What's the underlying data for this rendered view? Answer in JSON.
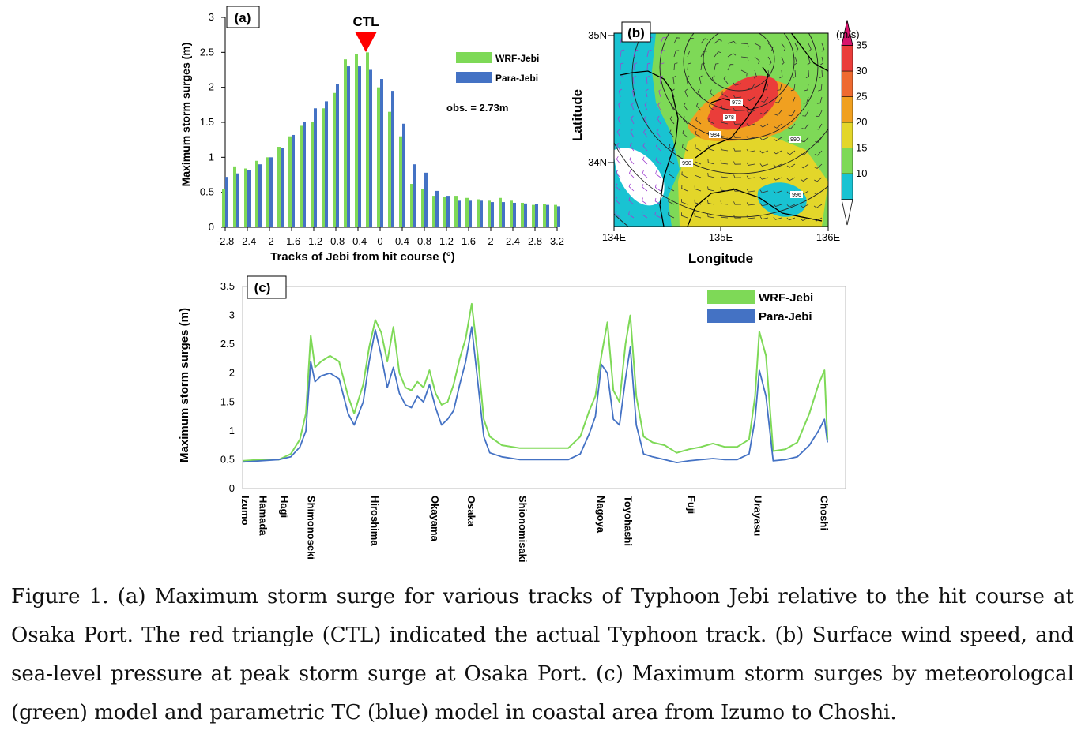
{
  "colors": {
    "wrf": "#7ED957",
    "para": "#4472C4",
    "ctl": "#FF0000"
  },
  "panel_a": {
    "label": "(a)",
    "ctl_label": "CTL",
    "obs_text": "obs. = 2.73m"
  },
  "panel_b": {
    "label": "(b)",
    "xlabel": "Longitude",
    "ylabel": "Latitude",
    "xticks": [
      "134E",
      "135E",
      "136E"
    ],
    "yticks": [
      "35N",
      "34N"
    ],
    "colorbar_unit": "(m/s)",
    "colorbar_ticks": [
      "35",
      "30",
      "25",
      "20",
      "15",
      "10"
    ],
    "colorbar_colors": [
      "#ffffff",
      "#19c3d2",
      "#7ed957",
      "#e3d62a",
      "#f0a020",
      "#ee6a30",
      "#ea3d3a",
      "#d8146c"
    ],
    "isobar_labels": [
      "972",
      "978",
      "984",
      "990",
      "990",
      "996"
    ]
  },
  "panel_c": {
    "label": "(c)"
  },
  "chart_data": [
    {
      "id": "a",
      "type": "bar",
      "title": "",
      "xlabel": "Tracks of Jebi from hit course (°)",
      "ylabel": "Maximum storm surges (m)",
      "ylim": [
        0,
        3
      ],
      "yticks": [
        "0",
        "0.5",
        "1",
        "1.5",
        "2",
        "2.5",
        "3"
      ],
      "xticks": [
        "-2.8",
        "-2.4",
        "-2",
        "-1.6",
        "-1.2",
        "-0.8",
        "-0.4",
        "0",
        "0.4",
        "0.8",
        "1.2",
        "1.6",
        "2",
        "2.4",
        "2.8",
        "3.2"
      ],
      "x": [
        -2.8,
        -2.6,
        -2.4,
        -2.2,
        -2.0,
        -1.8,
        -1.6,
        -1.4,
        -1.2,
        -1.0,
        -0.8,
        -0.6,
        -0.4,
        -0.2,
        0.0,
        0.2,
        0.4,
        0.6,
        0.8,
        1.0,
        1.2,
        1.4,
        1.6,
        1.8,
        2.0,
        2.2,
        2.4,
        2.6,
        2.8,
        3.0,
        3.2
      ],
      "series": [
        {
          "name": "WRF-Jebi",
          "values": [
            0.55,
            0.87,
            0.84,
            0.95,
            1.0,
            1.15,
            1.3,
            1.45,
            1.5,
            1.7,
            1.92,
            2.4,
            2.48,
            2.5,
            2.0,
            1.65,
            1.3,
            0.62,
            0.55,
            0.45,
            0.44,
            0.45,
            0.42,
            0.4,
            0.38,
            0.42,
            0.38,
            0.35,
            0.32,
            0.33,
            0.32
          ]
        },
        {
          "name": "Para-Jebi",
          "values": [
            0.72,
            0.77,
            0.82,
            0.9,
            1.0,
            1.13,
            1.32,
            1.5,
            1.7,
            1.8,
            2.05,
            2.3,
            2.3,
            2.25,
            2.12,
            1.95,
            1.48,
            0.9,
            0.78,
            0.52,
            0.45,
            0.38,
            0.38,
            0.38,
            0.36,
            0.36,
            0.35,
            0.34,
            0.33,
            0.32,
            0.3
          ]
        }
      ],
      "legend": "top-right",
      "annotations": [
        "CTL",
        "obs. = 2.73m"
      ]
    },
    {
      "id": "c",
      "type": "line",
      "title": "",
      "xlabel": "",
      "ylabel": "Maximum storm surges (m)",
      "ylim": [
        0,
        3.5
      ],
      "yticks": [
        "0",
        "0.5",
        "1",
        "1.5",
        "2",
        "2.5",
        "3",
        "3.5"
      ],
      "xlim": [
        0,
        100
      ],
      "location_labels": [
        "Izumo",
        "Hamada",
        "Hagi",
        "Shimonoseki",
        "Hiroshima",
        "Okayama",
        "Osaka",
        "Shionomisaki",
        "Nagoya",
        "Toyohashi",
        "Fuji",
        "Urayasu",
        "Choshi"
      ],
      "location_x": [
        0.5,
        3.5,
        7.0,
        11.5,
        22.0,
        32.0,
        38.0,
        46.5,
        59.5,
        64.0,
        74.5,
        85.5,
        96.5
      ],
      "series": [
        {
          "name": "WRF-Jebi",
          "x": [
            0,
            3,
            6,
            8,
            9.5,
            10.5,
            11.3,
            12,
            13,
            14.5,
            16,
            17.5,
            18.5,
            20,
            21,
            22,
            23,
            24,
            25,
            26,
            27,
            28,
            29,
            30,
            31,
            32,
            33,
            34,
            35,
            36,
            37,
            38,
            39,
            40,
            41,
            43,
            46,
            50,
            54,
            56,
            57.5,
            58.5,
            59.5,
            60.5,
            61.5,
            62.5,
            63.5,
            64.3,
            65.3,
            66.5,
            68,
            70,
            72,
            74,
            76,
            78,
            80,
            82,
            84,
            85,
            85.7,
            86.8,
            88,
            90,
            92,
            94,
            95.5,
            96.5,
            97
          ],
          "values": [
            0.48,
            0.5,
            0.5,
            0.6,
            0.85,
            1.3,
            2.65,
            2.1,
            2.2,
            2.3,
            2.2,
            1.6,
            1.3,
            1.8,
            2.45,
            2.92,
            2.7,
            2.2,
            2.8,
            2.0,
            1.75,
            1.7,
            1.85,
            1.75,
            2.05,
            1.65,
            1.45,
            1.5,
            1.8,
            2.25,
            2.6,
            3.2,
            2.3,
            1.2,
            0.9,
            0.75,
            0.7,
            0.7,
            0.7,
            0.9,
            1.35,
            1.6,
            2.3,
            2.88,
            1.7,
            1.5,
            2.5,
            3.0,
            1.6,
            0.9,
            0.8,
            0.75,
            0.62,
            0.68,
            0.72,
            0.78,
            0.72,
            0.72,
            0.85,
            1.6,
            2.72,
            2.3,
            0.65,
            0.68,
            0.8,
            1.3,
            1.8,
            2.05,
            0.85
          ]
        },
        {
          "name": "Para-Jebi",
          "x": [
            0,
            3,
            6,
            8,
            9.5,
            10.5,
            11.3,
            12,
            13,
            14.5,
            16,
            17.5,
            18.5,
            20,
            21,
            22,
            23,
            24,
            25,
            26,
            27,
            28,
            29,
            30,
            31,
            32,
            33,
            34,
            35,
            36,
            37,
            38,
            39,
            40,
            41,
            43,
            46,
            50,
            54,
            56,
            57.5,
            58.5,
            59.5,
            60.5,
            61.5,
            62.5,
            63.5,
            64.3,
            65.3,
            66.5,
            68,
            70,
            72,
            74,
            76,
            78,
            80,
            82,
            84,
            85,
            85.7,
            86.8,
            88,
            90,
            92,
            94,
            95.5,
            96.5,
            97
          ],
          "values": [
            0.46,
            0.48,
            0.5,
            0.55,
            0.72,
            1.0,
            2.2,
            1.85,
            1.95,
            2.0,
            1.9,
            1.3,
            1.1,
            1.5,
            2.2,
            2.75,
            2.3,
            1.75,
            2.1,
            1.65,
            1.45,
            1.4,
            1.6,
            1.5,
            1.8,
            1.4,
            1.1,
            1.2,
            1.35,
            1.8,
            2.2,
            2.8,
            1.85,
            0.9,
            0.62,
            0.55,
            0.5,
            0.5,
            0.5,
            0.6,
            0.95,
            1.25,
            2.15,
            2.0,
            1.2,
            1.1,
            1.9,
            2.45,
            1.1,
            0.6,
            0.55,
            0.5,
            0.45,
            0.48,
            0.5,
            0.52,
            0.5,
            0.5,
            0.6,
            1.2,
            2.05,
            1.6,
            0.48,
            0.5,
            0.55,
            0.75,
            1.0,
            1.2,
            0.8
          ]
        }
      ],
      "legend": "top-right"
    }
  ],
  "caption": "Figure 1. (a) Maximum storm surge for various tracks of Typhoon Jebi relative to the hit course at Osaka Port. The red triangle (CTL) indicated the actual Typhoon track. (b) Surface wind speed, and sea-level pressure at peak storm surge at Osaka Port. (c) Maximum storm surges by meteorologcal (green) model and parametric TC (blue) model in coastal area from Izumo to Choshi."
}
